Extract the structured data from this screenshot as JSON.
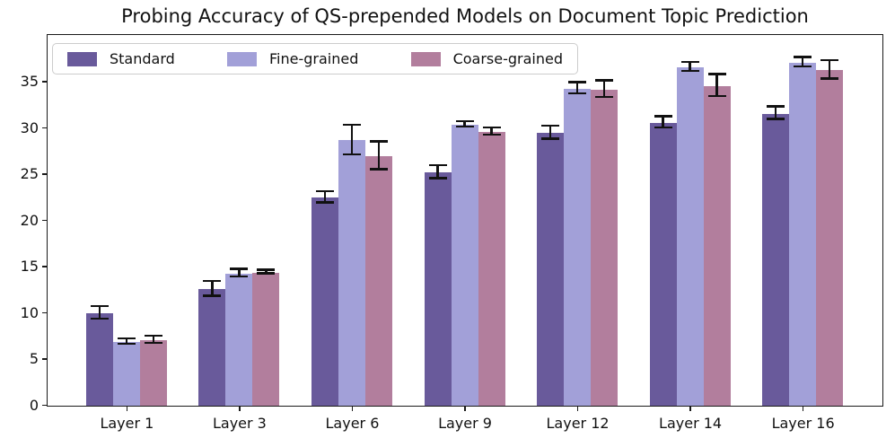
{
  "chart_data": {
    "type": "bar",
    "title": "Probing Accuracy of QS-prepended Models on Document Topic Prediction",
    "categories": [
      "Layer 1",
      "Layer 3",
      "Layer 6",
      "Layer 9",
      "Layer 12",
      "Layer 14",
      "Layer 16"
    ],
    "series": [
      {
        "name": "Standard",
        "color": "#695a9b",
        "values": [
          10.0,
          12.6,
          22.5,
          25.2,
          29.5,
          30.6,
          31.6
        ],
        "errors": [
          0.7,
          0.8,
          0.6,
          0.7,
          0.7,
          0.6,
          0.7
        ]
      },
      {
        "name": "Fine-grained",
        "color": "#a2a0d8",
        "values": [
          6.9,
          14.3,
          28.7,
          30.4,
          34.3,
          36.6,
          37.1
        ],
        "errors": [
          0.3,
          0.4,
          1.6,
          0.3,
          0.6,
          0.5,
          0.5
        ]
      },
      {
        "name": "Coarse-grained",
        "color": "#b27e9d",
        "values": [
          7.1,
          14.4,
          27.0,
          29.6,
          34.2,
          34.6,
          36.3
        ],
        "errors": [
          0.4,
          0.2,
          1.5,
          0.4,
          0.9,
          1.2,
          1.0
        ]
      }
    ],
    "xlabel": "",
    "ylabel": "",
    "ylim": [
      0,
      40
    ],
    "yticks": [
      0,
      5,
      10,
      15,
      20,
      25,
      30,
      35
    ],
    "legend_position": "upper left",
    "grid": false,
    "errorbar_color": "#111111",
    "spine_color": "#1a1a1a"
  }
}
